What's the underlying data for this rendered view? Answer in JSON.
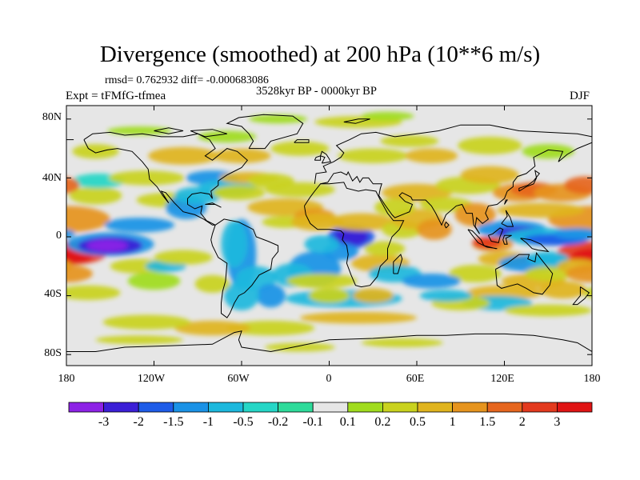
{
  "title": "Divergence (smoothed) at 200 hPa (10**6 m/s)",
  "stats": "rmsd= 0.762932 diff= -0.000683086",
  "period": "3528kyr BP - 0000kyr BP",
  "experiment": "Expt = tFMfG-tfmea",
  "season": "DJF",
  "lat_ticks": [
    "80N",
    "40N",
    "0",
    "40S",
    "80S"
  ],
  "lon_ticks": [
    "180",
    "120W",
    "60W",
    "0",
    "60E",
    "120E",
    "180"
  ],
  "colorbar": {
    "labels": [
      "-3",
      "-2",
      "-1.5",
      "-1",
      "-0.5",
      "-0.2",
      "-0.1",
      "0.1",
      "0.2",
      "0.5",
      "1",
      "1.5",
      "2",
      "3"
    ],
    "colors": [
      "#8d22e6",
      "#3b1fd6",
      "#1e5ce8",
      "#1a92e6",
      "#1cb8dd",
      "#25d6c6",
      "#2edb9a",
      "#e6e6e6",
      "#a0dc1e",
      "#c9d21e",
      "#e0b41e",
      "#e6941e",
      "#e6661e",
      "#e33a1e",
      "#e01414"
    ]
  },
  "legend_colors": {
    "land_outline": "#000000",
    "ocean_background": "#e6e6e6"
  }
}
